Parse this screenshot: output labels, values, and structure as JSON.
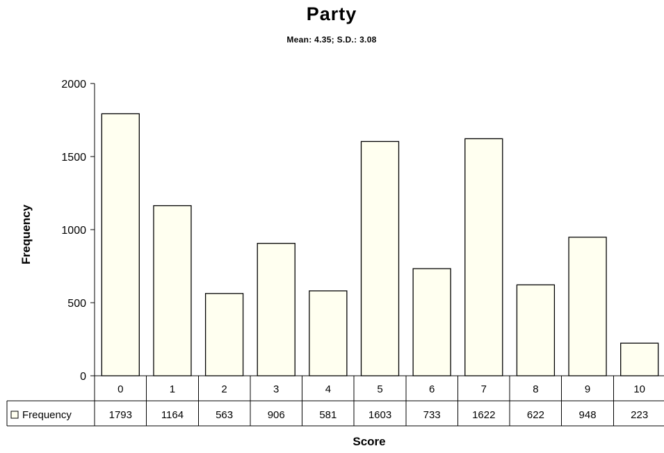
{
  "chart_data": {
    "type": "bar",
    "title": "Party",
    "subtitle": "Mean: 4.35; S.D.: 3.08",
    "xlabel": "Score",
    "ylabel": "Frequency",
    "categories": [
      "0",
      "1",
      "2",
      "3",
      "4",
      "5",
      "6",
      "7",
      "8",
      "9",
      "10"
    ],
    "series": [
      {
        "name": "Frequency",
        "values": [
          1793,
          1164,
          563,
          906,
          581,
          1603,
          733,
          1622,
          622,
          948,
          223
        ]
      }
    ],
    "ylim": [
      0,
      2000
    ],
    "yticks": [
      0,
      500,
      1000,
      1500,
      2000
    ],
    "grid": false,
    "legend": "data-table-left",
    "bar_fill": "#FFFFF0",
    "bar_stroke": "#000000"
  }
}
